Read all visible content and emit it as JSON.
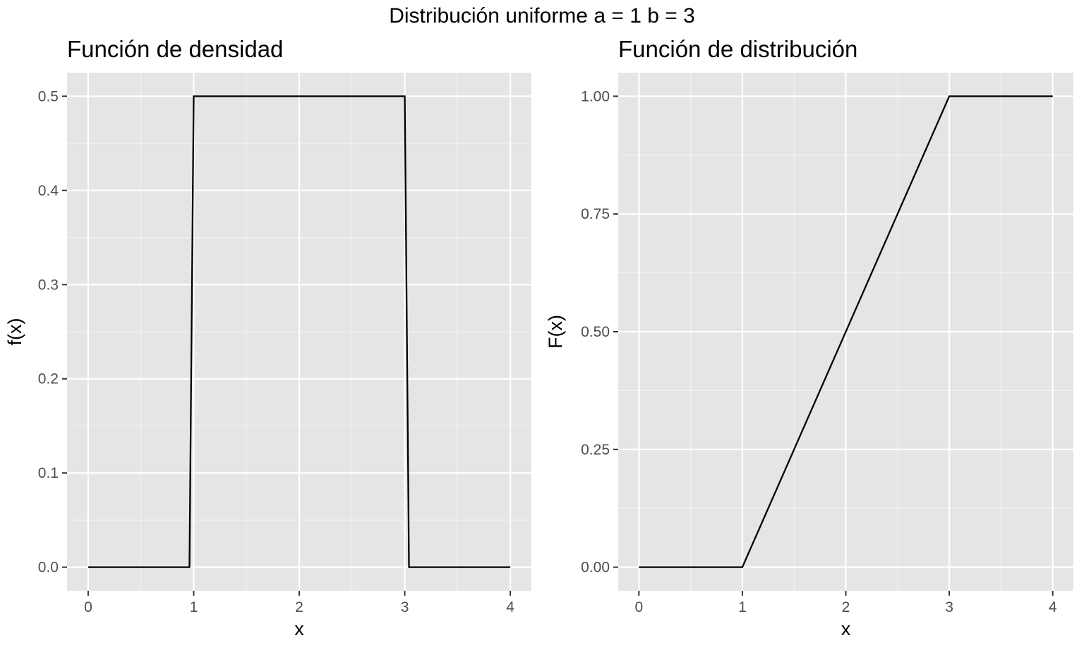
{
  "figure_title": "Distribución uniforme a = 1 b = 3",
  "chart_data": [
    {
      "type": "line",
      "title": "Función de densidad",
      "xlabel": "x",
      "ylabel": "f(x)",
      "xlim": [
        0,
        4
      ],
      "ylim": [
        0,
        0.5
      ],
      "x_ticks": [
        0,
        1,
        2,
        3,
        4
      ],
      "x_tick_labels": [
        "0",
        "1",
        "2",
        "3",
        "4"
      ],
      "y_ticks": [
        0,
        0.1,
        0.2,
        0.3,
        0.4,
        0.5
      ],
      "y_tick_labels": [
        "0.0",
        "0.1",
        "0.2",
        "0.3",
        "0.4",
        "0.5"
      ],
      "grid": true,
      "series": [
        {
          "x": [
            0,
            0.96,
            1.0,
            3.0,
            3.04,
            4
          ],
          "y": [
            0,
            0,
            0.5,
            0.5,
            0,
            0
          ]
        }
      ]
    },
    {
      "type": "line",
      "title": "Función de distribución",
      "xlabel": "x",
      "ylabel": "F(x)",
      "xlim": [
        0,
        4
      ],
      "ylim": [
        0,
        1
      ],
      "x_ticks": [
        0,
        1,
        2,
        3,
        4
      ],
      "x_tick_labels": [
        "0",
        "1",
        "2",
        "3",
        "4"
      ],
      "y_ticks": [
        0,
        0.25,
        0.5,
        0.75,
        1
      ],
      "y_tick_labels": [
        "0.00",
        "0.25",
        "0.50",
        "0.75",
        "1.00"
      ],
      "grid": true,
      "series": [
        {
          "x": [
            0,
            1,
            3,
            4
          ],
          "y": [
            0,
            0,
            1,
            1
          ]
        }
      ]
    }
  ]
}
